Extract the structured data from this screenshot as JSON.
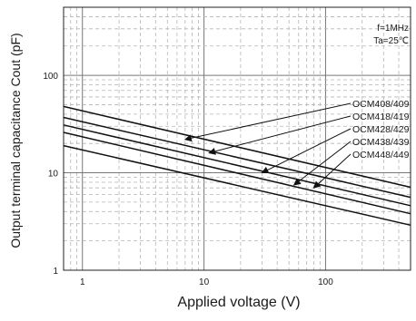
{
  "chart_data": {
    "type": "line",
    "xlabel": "Applied voltage  (V)",
    "ylabel": "Output terminal capacitance Cout (pF)",
    "x_scale": "log",
    "y_scale": "log",
    "xlim": [
      0.7,
      500
    ],
    "ylim": [
      1,
      500
    ],
    "x_ticks": [
      1,
      10,
      100
    ],
    "x_tick_labels": [
      "1",
      "10",
      "100"
    ],
    "y_ticks": [
      1,
      10,
      100
    ],
    "y_tick_labels": [
      "1",
      "10",
      "100"
    ],
    "grid": true,
    "conditions": [
      "f=1MHz",
      "Ta=25℃"
    ],
    "series": [
      {
        "name": "OCM408/409",
        "x": [
          0.7,
          500
        ],
        "y": [
          48,
          7.1
        ]
      },
      {
        "name": "OCM418/419",
        "x": [
          0.7,
          500
        ],
        "y": [
          37,
          5.6
        ]
      },
      {
        "name": "OCM428/429",
        "x": [
          0.7,
          500
        ],
        "y": [
          31,
          4.6
        ]
      },
      {
        "name": "OCM438/439",
        "x": [
          0.7,
          500
        ],
        "y": [
          26,
          3.8
        ]
      },
      {
        "name": "OCM448/449",
        "x": [
          0.7,
          500
        ],
        "y": [
          19,
          2.9
        ]
      }
    ],
    "annotation_targets": [
      {
        "x": 7,
        "y": 22
      },
      {
        "x": 11,
        "y": 16
      },
      {
        "x": 30,
        "y": 10
      },
      {
        "x": 55,
        "y": 7.5
      },
      {
        "x": 80,
        "y": 7
      }
    ]
  }
}
